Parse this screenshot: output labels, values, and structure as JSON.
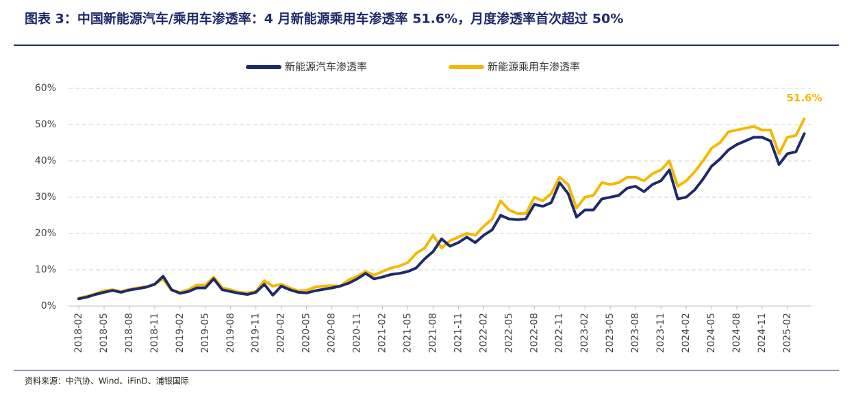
{
  "chart_data": {
    "type": "line",
    "title": "图表 3：中国新能源汽车/乘用车渗透率：4 月新能源乘用车渗透率 51.6%，月度渗透率首次超过 50%",
    "source": "资料来源：中汽协、Wind、iFinD、浦银国际",
    "legend": "top",
    "grid": true,
    "categories": [
      "2018-02",
      null,
      null,
      "2018-05",
      null,
      null,
      "2018-08",
      null,
      null,
      "2018-11",
      null,
      null,
      "2019-02",
      null,
      null,
      "2019-05",
      null,
      null,
      "2019-08",
      null,
      null,
      "2019-11",
      null,
      null,
      "2020-02",
      null,
      null,
      "2020-05",
      null,
      null,
      "2020-08",
      null,
      null,
      "2020-11",
      null,
      null,
      "2021-02",
      null,
      null,
      "2021-05",
      null,
      null,
      "2021-08",
      null,
      null,
      "2021-11",
      null,
      null,
      "2022-02",
      null,
      null,
      "2022-05",
      null,
      null,
      "2022-08",
      null,
      null,
      "2022-11",
      null,
      null,
      "2023-02",
      null,
      null,
      "2023-05",
      null,
      null,
      "2023-08",
      null,
      null,
      "2023-11",
      null,
      null,
      "2024-02",
      null,
      null,
      "2024-05",
      null,
      null,
      "2024-08",
      null,
      null,
      "2024-11",
      null,
      null,
      "2025-02",
      null,
      null
    ],
    "ylim": [
      0,
      60
    ],
    "yticks": [
      {
        "value": 0,
        "label": "0%"
      },
      {
        "value": 10,
        "label": "10%"
      },
      {
        "value": 20,
        "label": "20%"
      },
      {
        "value": 30,
        "label": "30%"
      },
      {
        "value": 40,
        "label": "40%"
      },
      {
        "value": 50,
        "label": "50%"
      },
      {
        "value": 60,
        "label": "60%"
      }
    ],
    "series": [
      {
        "name": "新能源汽车渗透率",
        "color": "#1f2a6b",
        "values": [
          2,
          2.5,
          3.2,
          3.8,
          4.3,
          3.8,
          4.4,
          4.8,
          5.2,
          6,
          8.2,
          4.5,
          3.5,
          4,
          5,
          5,
          7.5,
          4.5,
          4,
          3.5,
          3.2,
          3.8,
          6,
          3,
          5.5,
          4.5,
          3.8,
          3.6,
          4.2,
          4.6,
          5,
          5.5,
          6.3,
          7.5,
          9,
          7.5,
          8,
          8.7,
          9,
          9.5,
          10.5,
          13,
          15,
          18.5,
          16.5,
          17.5,
          19,
          17.5,
          19.5,
          21,
          25,
          24,
          23.8,
          24,
          28,
          27.5,
          28.5,
          34,
          31,
          24.5,
          26.5,
          26.5,
          29.5,
          30,
          30.5,
          32.5,
          33,
          31.5,
          33.5,
          34.5,
          37.5,
          29.5,
          30,
          32,
          35,
          38.5,
          40.5,
          43,
          44.5,
          45.5,
          46.5,
          46.5,
          45.5,
          39,
          42,
          42.5,
          47.5
        ]
      },
      {
        "name": "新能源乘用车渗透率",
        "color": "#f5b800",
        "values": [
          2.2,
          2.7,
          3.4,
          4.2,
          4.5,
          4,
          4.6,
          5,
          5.3,
          6,
          7.5,
          4.3,
          3.8,
          4.5,
          5.8,
          5.8,
          8,
          5,
          4.5,
          3.8,
          3.6,
          4,
          7,
          5.5,
          6,
          5,
          4.2,
          4.3,
          5.2,
          5.5,
          5.6,
          5.5,
          7.2,
          8.2,
          9.5,
          8.5,
          9.5,
          10.5,
          11,
          12,
          14.5,
          16,
          19.5,
          16,
          18,
          19,
          20,
          19.5,
          22,
          24,
          29,
          26.5,
          25.5,
          25.5,
          30,
          29,
          31,
          35.5,
          33.5,
          27,
          30,
          30.5,
          34,
          33.5,
          34,
          35.5,
          35.5,
          34.5,
          36.5,
          37.5,
          40,
          33,
          34.5,
          37,
          40,
          43.5,
          45,
          48,
          48.5,
          49,
          49.5,
          48.5,
          48.5,
          42,
          46.5,
          47,
          51.6
        ],
        "value_labels": [
          null,
          null,
          null,
          null,
          null,
          null,
          null,
          null,
          null,
          null,
          null,
          null,
          null,
          null,
          null,
          null,
          null,
          null,
          null,
          null,
          null,
          null,
          null,
          null,
          null,
          null,
          null,
          null,
          null,
          null,
          null,
          null,
          null,
          null,
          null,
          null,
          null,
          null,
          null,
          null,
          null,
          null,
          null,
          null,
          null,
          null,
          null,
          null,
          null,
          null,
          null,
          null,
          null,
          null,
          null,
          null,
          null,
          null,
          null,
          null,
          null,
          null,
          null,
          null,
          null,
          null,
          null,
          null,
          null,
          null,
          null,
          null,
          null,
          null,
          null,
          null,
          null,
          null,
          null,
          null,
          null,
          null,
          null,
          null,
          null,
          null,
          "51.6%"
        ]
      }
    ]
  }
}
